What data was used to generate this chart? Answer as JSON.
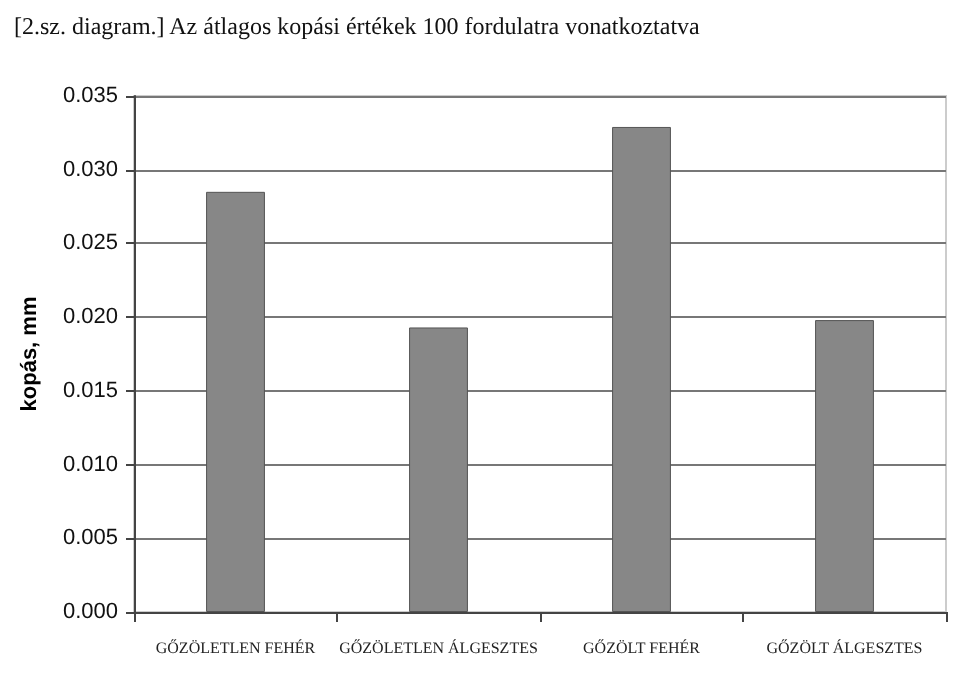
{
  "chart_data": {
    "type": "bar",
    "title": "[2.sz. diagram.] Az átlagos kopási értékek 100 fordulatra vonatkoztatva",
    "ylabel": "kopás, mm",
    "categories": [
      "GŐZÖLETLEN FEHÉR",
      "GŐZÖLETLEN ÁLGESZTES",
      "GŐZÖLT FEHÉR",
      "GŐZÖLT ÁLGESZTES"
    ],
    "values": [
      0.0285,
      0.0193,
      0.0329,
      0.0198
    ],
    "color": "#878787",
    "ylim": [
      0,
      0.035
    ],
    "yticks": [
      {
        "value": 0,
        "label": "0.000"
      },
      {
        "value": 0.005,
        "label": "0.005"
      },
      {
        "value": 0.01,
        "label": "0.010"
      },
      {
        "value": 0.015,
        "label": "0.015"
      },
      {
        "value": 0.02,
        "label": "0.020"
      },
      {
        "value": 0.025,
        "label": "0.025"
      },
      {
        "value": 0.03,
        "label": "0.030"
      },
      {
        "value": 0.035,
        "label": "0.035"
      }
    ],
    "grid": "y"
  }
}
